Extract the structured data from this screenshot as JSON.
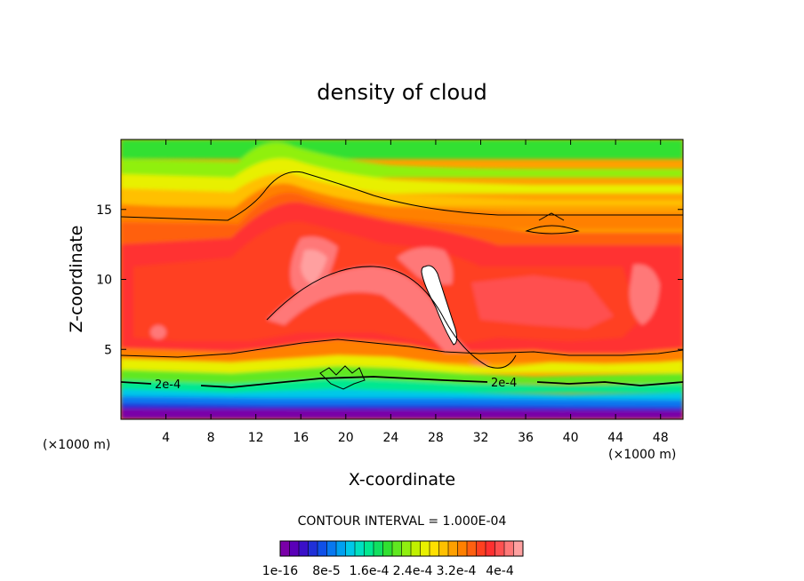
{
  "chart_data": {
    "type": "heatmap",
    "title": "density of cloud",
    "xlabel": "X-coordinate",
    "ylabel": "Z-coordinate",
    "x_unit": "(×1000 m)",
    "y_unit": "(×1000 m)",
    "xlim": [
      0,
      50
    ],
    "ylim": [
      0,
      20
    ],
    "x_ticks": [
      "4",
      "8",
      "12",
      "16",
      "20",
      "24",
      "28",
      "32",
      "36",
      "40",
      "44",
      "48"
    ],
    "y_ticks": [
      "5",
      "10",
      "15"
    ],
    "contour_interval_text": "CONTOUR INTERVAL = 1.000E-04",
    "contour_labels": [
      "2e-4",
      "2e-4"
    ],
    "colorbar": {
      "labels": [
        "1e-16",
        "8e-5",
        "1.6e-4",
        "2.4e-4",
        "3.2e-4",
        "4e-4"
      ],
      "colors": [
        "#7a00a8",
        "#5a00b8",
        "#3a10c8",
        "#2030d8",
        "#1050e8",
        "#0878f0",
        "#00a0f0",
        "#00c8e8",
        "#00e0c0",
        "#00e890",
        "#10e060",
        "#30e030",
        "#60e820",
        "#90f010",
        "#c0f000",
        "#e8f000",
        "#ffe000",
        "#ffc000",
        "#ffa000",
        "#ff8000",
        "#ff6010",
        "#ff4020",
        "#ff3030",
        "#ff5050",
        "#ff7878",
        "#ffa0a0"
      ]
    }
  }
}
